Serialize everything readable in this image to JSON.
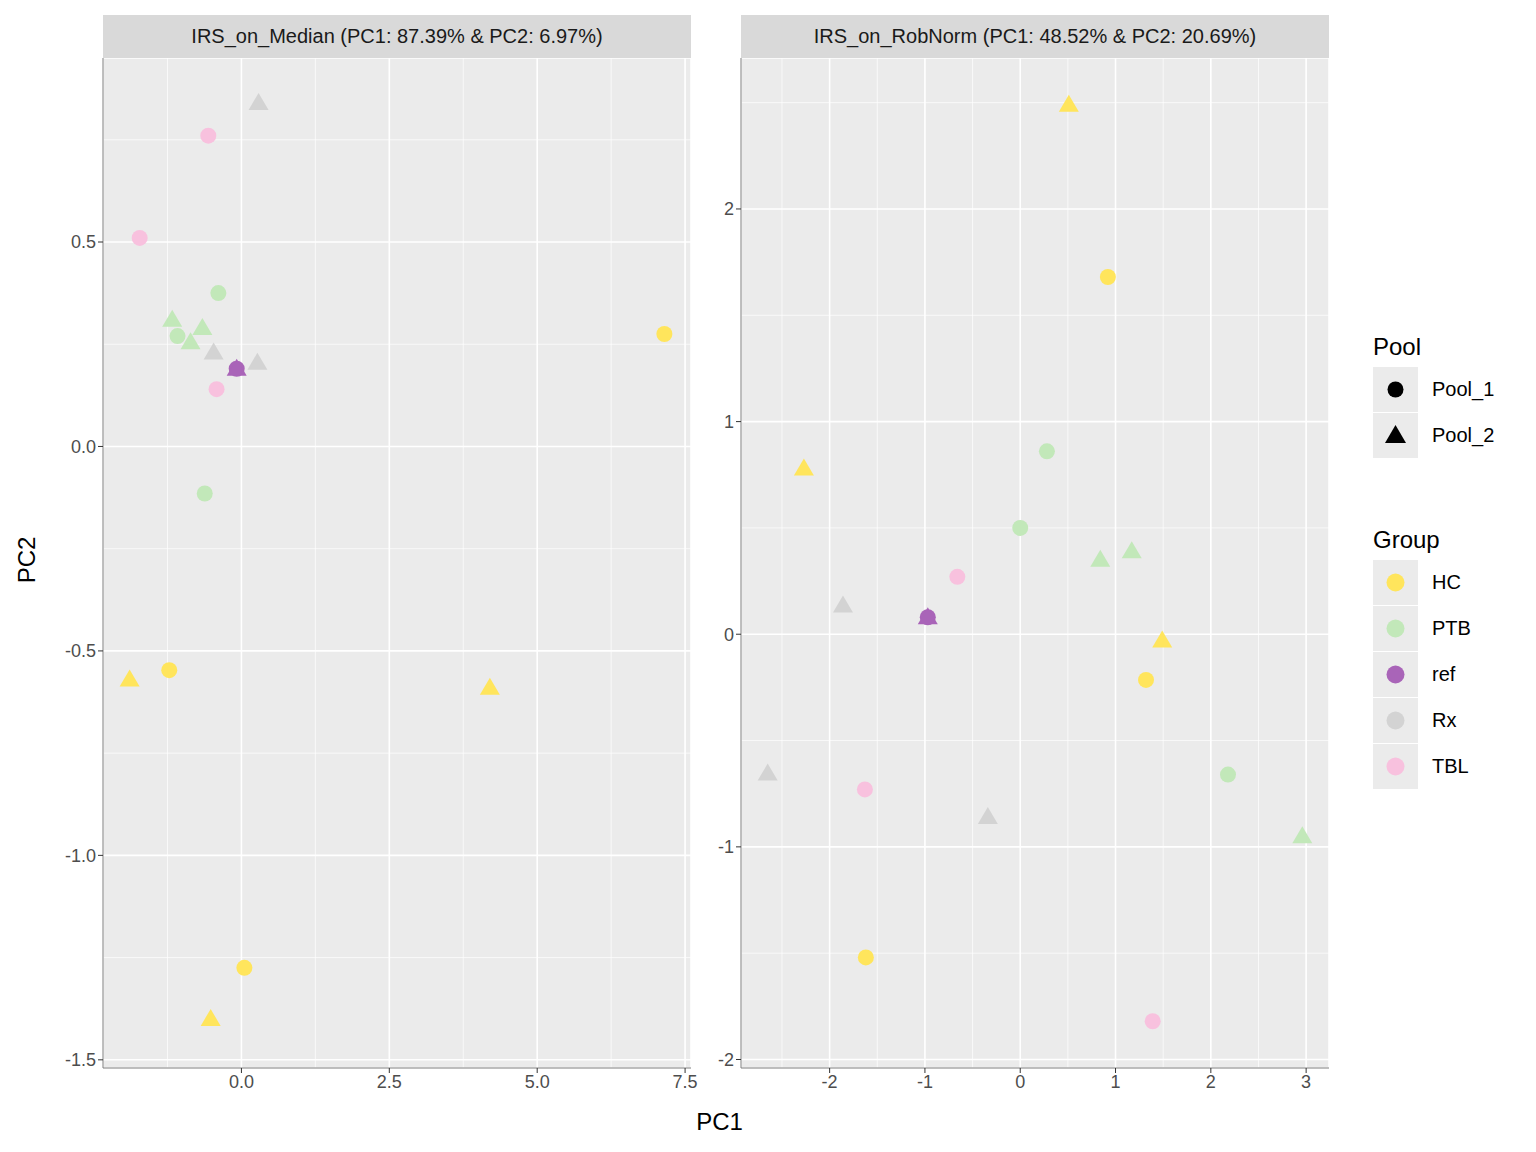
{
  "x_label": "PC1",
  "y_label": "PC2",
  "legend": "right",
  "pool_legend": {
    "title": "Pool",
    "entries": [
      {
        "name": "Pool_1",
        "marker": "circle"
      },
      {
        "name": "Pool_2",
        "marker": "triangle"
      }
    ]
  },
  "group_legend": {
    "title": "Group",
    "entries": [
      {
        "name": "HC",
        "color": "#FFE55C"
      },
      {
        "name": "PTB",
        "color": "#C2E8B9"
      },
      {
        "name": "ref",
        "color": "#A964B8"
      },
      {
        "name": "Rx",
        "color": "#D3D3D3"
      },
      {
        "name": "TBL",
        "color": "#F8C1DE"
      }
    ]
  },
  "chart_data": [
    {
      "type": "scatter",
      "title": "IRS_on_Median (PC1: 87.39% & PC2: 6.97%)",
      "xlim": [
        -2.34,
        7.6
      ],
      "ylim": [
        -1.52,
        0.95
      ],
      "xticks": [
        {
          "value": 0,
          "label": "0.0"
        },
        2.5,
        {
          "value": 5,
          "label": "5.0"
        },
        7.5
      ],
      "yticks": [
        -1.5,
        {
          "value": -1,
          "label": "-1.0"
        },
        -0.5,
        {
          "value": 0,
          "label": "0.0"
        },
        0.5
      ],
      "grid": true,
      "series": [
        {
          "name": "HC",
          "x": [
            7.15,
            -1.22,
            0.05,
            -1.89,
            4.2,
            -0.52
          ],
          "y": [
            0.275,
            -0.547,
            -1.275,
            -0.57,
            -0.59,
            -1.4
          ],
          "pool": [
            "Pool_1",
            "Pool_1",
            "Pool_1",
            "Pool_2",
            "Pool_2",
            "Pool_2"
          ]
        },
        {
          "name": "PTB",
          "x": [
            -0.39,
            -1.08,
            -0.62,
            -1.17,
            -0.66,
            -0.86
          ],
          "y": [
            0.375,
            0.27,
            -0.115,
            0.31,
            0.29,
            0.255
          ],
          "pool": [
            "Pool_1",
            "Pool_1",
            "Pool_1",
            "Pool_2",
            "Pool_2",
            "Pool_2"
          ]
        },
        {
          "name": "ref",
          "x": [
            -0.08,
            -0.08
          ],
          "y": [
            0.19,
            0.19
          ],
          "pool": [
            "Pool_1",
            "Pool_2"
          ]
        },
        {
          "name": "Rx",
          "x": [
            0.29,
            -0.47,
            0.27
          ],
          "y": [
            0.84,
            0.23,
            0.205
          ],
          "pool": [
            "Pool_2",
            "Pool_2",
            "Pool_2"
          ]
        },
        {
          "name": "TBL",
          "x": [
            -0.56,
            -1.72,
            -0.42
          ],
          "y": [
            0.76,
            0.51,
            0.14
          ],
          "pool": [
            "Pool_1",
            "Pool_1",
            "Pool_1"
          ]
        }
      ]
    },
    {
      "type": "scatter",
      "title": "IRS_on_RobNorm (PC1: 48.52% & PC2: 20.69%)",
      "xlim": [
        -2.93,
        3.24
      ],
      "ylim": [
        -2.04,
        2.71
      ],
      "xticks": [
        -2,
        -1,
        0,
        1,
        2,
        3
      ],
      "yticks": [
        -2,
        -1,
        0,
        1,
        2
      ],
      "grid": true,
      "series": [
        {
          "name": "HC",
          "x": [
            0.92,
            1.32,
            -1.62,
            0.51,
            -2.27,
            1.49
          ],
          "y": [
            1.68,
            -0.215,
            -1.52,
            2.49,
            0.78,
            -0.03
          ],
          "pool": [
            "Pool_1",
            "Pool_1",
            "Pool_1",
            "Pool_2",
            "Pool_2",
            "Pool_2"
          ]
        },
        {
          "name": "PTB",
          "x": [
            0.28,
            0.0,
            2.18,
            0.84,
            1.17,
            2.96
          ],
          "y": [
            0.86,
            0.5,
            -0.66,
            0.35,
            0.39,
            -0.95
          ],
          "pool": [
            "Pool_1",
            "Pool_1",
            "Pool_1",
            "Pool_2",
            "Pool_2",
            "Pool_2"
          ]
        },
        {
          "name": "ref",
          "x": [
            -0.97,
            -0.97
          ],
          "y": [
            0.08,
            0.08
          ],
          "pool": [
            "Pool_1",
            "Pool_2"
          ]
        },
        {
          "name": "Rx",
          "x": [
            -1.86,
            -2.65,
            -0.34
          ],
          "y": [
            0.135,
            -0.655,
            -0.86
          ],
          "pool": [
            "Pool_2",
            "Pool_2",
            "Pool_2"
          ]
        },
        {
          "name": "TBL",
          "x": [
            -0.66,
            -1.63,
            1.39
          ],
          "y": [
            0.27,
            -0.73,
            -1.82
          ],
          "pool": [
            "Pool_1",
            "Pool_1",
            "Pool_1"
          ]
        }
      ]
    }
  ]
}
